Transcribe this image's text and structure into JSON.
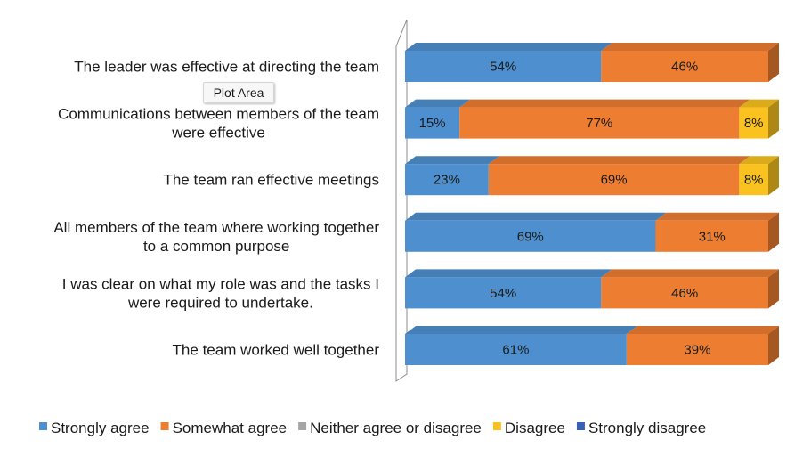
{
  "chart_data": {
    "type": "bar",
    "orientation": "horizontal",
    "stacked": true,
    "percent": true,
    "categories": [
      "The leader was effective at directing the team",
      "Communications between members of the team were effective",
      "The team ran effective meetings",
      "All members of the team where working together to a common purpose",
      "I was clear on what my role was and the tasks I were required to undertake.",
      "The team worked well together"
    ],
    "category_lines": [
      [
        "The leader was effective at directing the team"
      ],
      [
        "Communications between members of the team",
        "were effective"
      ],
      [
        "The team ran effective  meetings"
      ],
      [
        "All members of the team where working together",
        "to a common purpose"
      ],
      [
        "I was clear on what my role was and the tasks I",
        "were required to undertake."
      ],
      [
        "The team worked well together"
      ]
    ],
    "series": [
      {
        "name": "Strongly agree",
        "color": "#4e90cf",
        "values": [
          54,
          15,
          23,
          69,
          54,
          61
        ]
      },
      {
        "name": "Somewhat agree",
        "color": "#ed7d31",
        "values": [
          46,
          77,
          69,
          31,
          46,
          39
        ]
      },
      {
        "name": "Neither agree or disagree",
        "color": "#a5a5a5",
        "values": [
          0,
          0,
          0,
          0,
          0,
          0
        ]
      },
      {
        "name": "Disagree",
        "color": "#f9c21e",
        "values": [
          0,
          8,
          8,
          0,
          0,
          0
        ]
      },
      {
        "name": "Strongly disagree",
        "color": "#3560b8",
        "values": [
          0,
          0,
          0,
          0,
          0,
          0
        ]
      }
    ],
    "data_labels": true,
    "legend_position": "bottom",
    "grid": false,
    "xlim": [
      0,
      100
    ],
    "style": "3d"
  },
  "tooltip": {
    "text": "Plot Area"
  }
}
